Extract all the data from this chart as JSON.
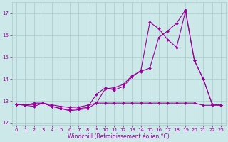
{
  "xlabel": "Windchill (Refroidissement éolien,°C)",
  "bg_color": "#cce8e8",
  "grid_color": "#aacccc",
  "line_color": "#990099",
  "xlim": [
    -0.5,
    23.5
  ],
  "ylim": [
    11.9,
    17.5
  ],
  "yticks": [
    12,
    13,
    14,
    15,
    16,
    17
  ],
  "xticks": [
    0,
    1,
    2,
    3,
    4,
    5,
    6,
    7,
    8,
    9,
    10,
    11,
    12,
    13,
    14,
    15,
    16,
    17,
    18,
    19,
    20,
    21,
    22,
    23
  ],
  "line1_x": [
    0,
    1,
    2,
    3,
    4,
    5,
    6,
    7,
    8,
    9,
    10,
    11,
    12,
    13,
    14,
    15,
    16,
    17,
    18,
    19,
    20,
    21,
    22,
    23
  ],
  "line1_y": [
    12.85,
    12.8,
    12.9,
    12.9,
    12.75,
    12.65,
    12.55,
    12.6,
    12.65,
    12.9,
    12.9,
    12.9,
    12.9,
    12.9,
    12.9,
    12.9,
    12.9,
    12.9,
    12.9,
    12.9,
    12.9,
    12.8,
    12.8,
    12.8
  ],
  "line2_x": [
    0,
    1,
    2,
    3,
    4,
    5,
    6,
    7,
    8,
    9,
    10,
    11,
    12,
    13,
    14,
    15,
    16,
    17,
    18,
    19,
    20,
    21,
    22,
    23
  ],
  "line2_y": [
    12.85,
    12.8,
    12.75,
    12.9,
    12.75,
    12.65,
    12.6,
    12.65,
    12.7,
    13.3,
    13.6,
    13.5,
    13.65,
    14.1,
    14.4,
    16.6,
    16.3,
    15.8,
    15.45,
    17.1,
    14.85,
    14.0,
    12.85,
    12.8
  ],
  "line3_x": [
    0,
    1,
    2,
    3,
    4,
    5,
    6,
    7,
    8,
    9,
    10,
    11,
    12,
    13,
    14,
    15,
    16,
    17,
    18,
    19,
    20,
    21,
    22,
    23
  ],
  "line3_y": [
    12.85,
    12.82,
    12.84,
    12.9,
    12.82,
    12.75,
    12.7,
    12.72,
    12.8,
    12.9,
    13.55,
    13.6,
    13.75,
    14.15,
    14.35,
    14.5,
    15.9,
    16.2,
    16.55,
    17.15,
    14.85,
    14.0,
    12.85,
    12.8
  ],
  "marker": "D",
  "markersize": 2.0,
  "linewidth": 0.8,
  "tick_labelsize": 5,
  "xlabel_fontsize": 5.5
}
